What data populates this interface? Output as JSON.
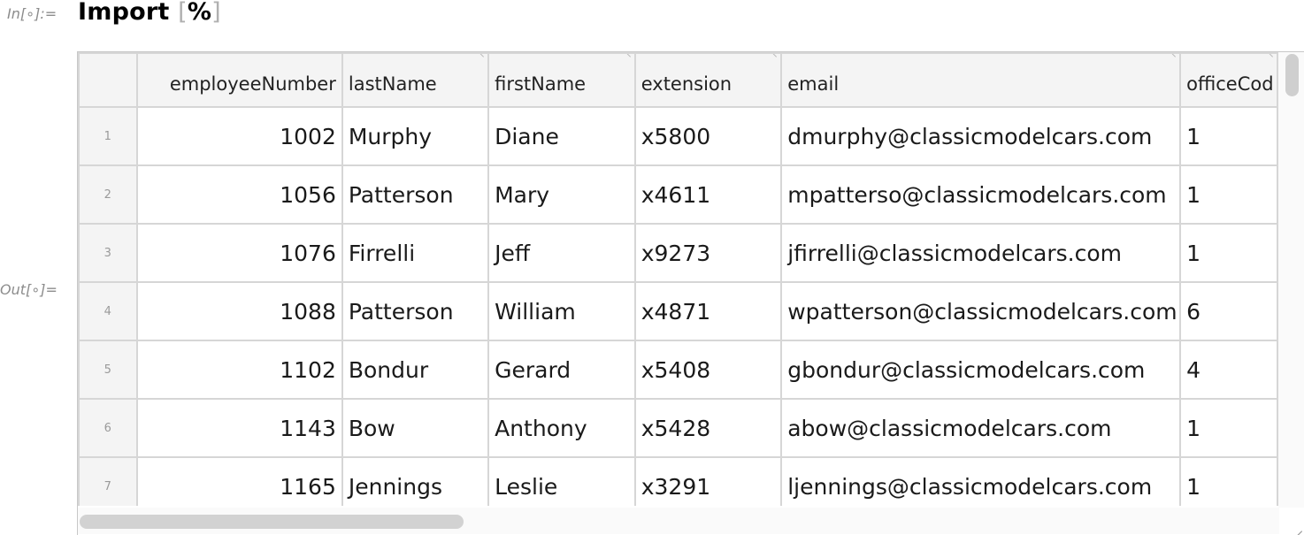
{
  "notebook": {
    "in_label": "In[∘]:=",
    "out_label": "Out[∘]=",
    "code": {
      "func": "Import",
      "open": "[",
      "arg": "%",
      "close": "]"
    }
  },
  "table": {
    "columns": [
      "",
      "employeeNumber",
      "lastName",
      "firstName",
      "extension",
      "email",
      "officeCod"
    ],
    "rows": [
      [
        "1",
        "1002",
        "Murphy",
        "Diane",
        "x5800",
        "dmurphy@classicmodelcars.com",
        "1"
      ],
      [
        "2",
        "1056",
        "Patterson",
        "Mary",
        "x4611",
        "mpatterso@classicmodelcars.com",
        "1"
      ],
      [
        "3",
        "1076",
        "Firrelli",
        "Jeff",
        "x9273",
        "jfirrelli@classicmodelcars.com",
        "1"
      ],
      [
        "4",
        "1088",
        "Patterson",
        "William",
        "x4871",
        "wpatterson@classicmodelcars.com",
        "6"
      ],
      [
        "5",
        "1102",
        "Bondur",
        "Gerard",
        "x5408",
        "gbondur@classicmodelcars.com",
        "4"
      ],
      [
        "6",
        "1143",
        "Bow",
        "Anthony",
        "x5428",
        "abow@classicmodelcars.com",
        "1"
      ],
      [
        "7",
        "1165",
        "Jennings",
        "Leslie",
        "x3291",
        "ljennings@classicmodelcars.com",
        "1"
      ]
    ]
  },
  "scrollbars": {
    "horizontal_position": 0.0,
    "vertical_position": 0.0
  }
}
